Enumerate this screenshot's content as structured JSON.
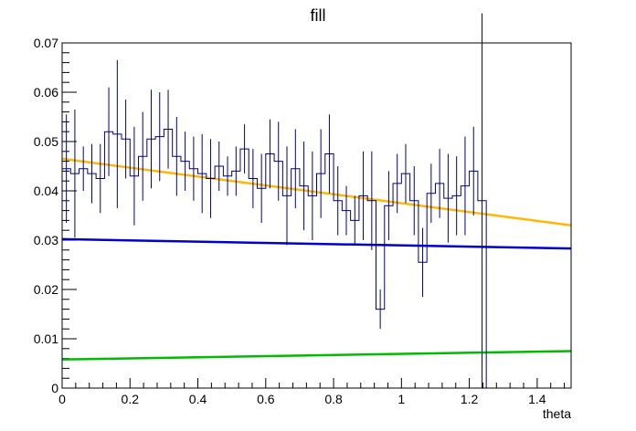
{
  "chart_data": {
    "type": "line",
    "title": "fill",
    "xlabel": "theta",
    "ylabel": "",
    "xlim": [
      0,
      1.5
    ],
    "ylim": [
      0,
      0.07
    ],
    "x_ticks": [
      0,
      0.2,
      0.4,
      0.6,
      0.8,
      1,
      1.2,
      1.4
    ],
    "x_tick_labels": [
      "0",
      "0.2",
      "0.4",
      "0.6",
      "0.8",
      "1",
      "1.2",
      "1.4"
    ],
    "y_ticks": [
      0,
      0.01,
      0.02,
      0.03,
      0.04,
      0.05,
      0.06,
      0.07
    ],
    "y_tick_labels": [
      "0",
      "0.01",
      "0.02",
      "0.03",
      "0.04",
      "0.05",
      "0.06",
      "0.07"
    ],
    "grid": false,
    "legend": "none",
    "histogram": {
      "name": "",
      "color": "#000080",
      "bin_width": 0.025,
      "x_start": 0,
      "values": [
        0.0445,
        0.0435,
        0.0445,
        0.0435,
        0.0425,
        0.052,
        0.0515,
        0.0505,
        0.043,
        0.047,
        0.0505,
        0.051,
        0.0525,
        0.047,
        0.046,
        0.0445,
        0.0435,
        0.0425,
        0.045,
        0.043,
        0.044,
        0.0485,
        0.0425,
        0.0405,
        0.0475,
        0.046,
        0.039,
        0.0445,
        0.041,
        0.039,
        0.0435,
        0.0475,
        0.038,
        0.036,
        0.034,
        0.039,
        0.038,
        0.016,
        0.037,
        0.0415,
        0.0435,
        0.038,
        0.0255,
        0.0395,
        0.0415,
        0.0385,
        0.039,
        0.041,
        0.044,
        0.038
      ],
      "errors": [
        0.011,
        0.013,
        0.0045,
        0.006,
        0.007,
        0.009,
        0.015,
        0.008,
        0.01,
        0.009,
        0.01,
        0.009,
        0.008,
        0.008,
        0.006,
        0.0065,
        0.008,
        0.008,
        0.005,
        0.004,
        0.005,
        0.005,
        0.006,
        0.007,
        0.007,
        0.008,
        0.01,
        0.008,
        0.009,
        0.009,
        0.009,
        0.008,
        0.007,
        0.005,
        0.005,
        0.009,
        0.01,
        0.004,
        0.007,
        0.006,
        0.006,
        0.007,
        0.007,
        0.006,
        0.007,
        0.009,
        0.008,
        0.01,
        0.009,
        0.038
      ]
    },
    "series": [
      {
        "color": "#ffb800",
        "x": [
          0,
          1.5
        ],
        "y": [
          0.0465,
          0.033
        ]
      },
      {
        "color": "#0000cc",
        "x": [
          0,
          1.5
        ],
        "y": [
          0.0302,
          0.0283
        ]
      },
      {
        "color": "#00bb00",
        "x": [
          0,
          1.5
        ],
        "y": [
          0.0058,
          0.0075
        ]
      }
    ]
  }
}
